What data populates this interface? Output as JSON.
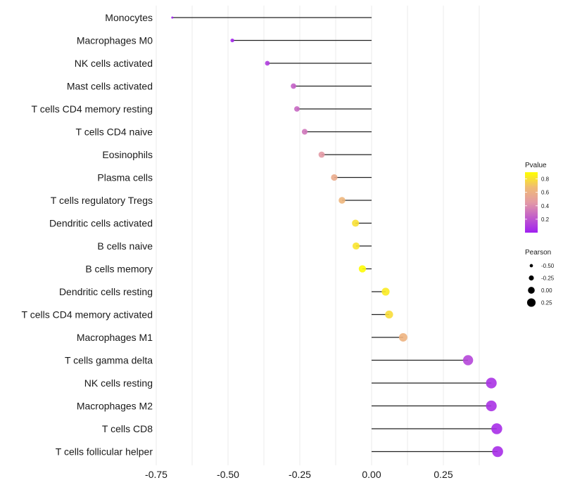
{
  "chart_data": {
    "type": "lollipop",
    "title": "",
    "xlabel": "",
    "ylabel": "",
    "xlim": [
      -0.76,
      0.48
    ],
    "x_ticks": [
      -0.75,
      -0.5,
      -0.25,
      0.0,
      0.25
    ],
    "x_tick_labels": [
      "-0.75",
      "-0.50",
      "-0.25",
      "0.00",
      "0.25"
    ],
    "grid": true,
    "categories": [
      "Monocytes",
      "Macrophages M0",
      "NK cells activated",
      "Mast cells activated",
      "T cells CD4 memory resting",
      "T cells CD4 naive",
      "Eosinophils",
      "Plasma cells",
      "T cells regulatory  Tregs",
      "Dendritic cells activated",
      "B cells naive",
      "B cells memory",
      "Dendritic cells resting",
      "T cells CD4 memory activated",
      "Macrophages M1",
      "T cells gamma delta",
      "NK cells resting",
      "Macrophages M2",
      "T cells CD8",
      "T cells follicular helper"
    ],
    "pearson": [
      -0.694,
      -0.485,
      -0.363,
      -0.272,
      -0.26,
      -0.233,
      -0.174,
      -0.13,
      -0.103,
      -0.056,
      -0.054,
      -0.032,
      0.049,
      0.061,
      0.11,
      0.336,
      0.417,
      0.417,
      0.436,
      0.439
    ],
    "pvalue": [
      0.001,
      0.03,
      0.11,
      0.24,
      0.27,
      0.32,
      0.45,
      0.58,
      0.66,
      0.81,
      0.82,
      0.89,
      0.84,
      0.8,
      0.64,
      0.14,
      0.07,
      0.07,
      0.05,
      0.05
    ],
    "legend": {
      "placement": "right",
      "color": {
        "title": "Pvalue",
        "range": [
          0,
          0.9
        ],
        "ticks": [
          0.2,
          0.4,
          0.6,
          0.8
        ],
        "tick_labels": [
          "0.2",
          "0.4",
          "0.6",
          "0.8"
        ],
        "low_color": "#a020f0",
        "high_color": "#ffff00"
      },
      "size": {
        "title": "Pearson",
        "values": [
          -0.5,
          -0.25,
          0.0,
          0.25
        ],
        "labels": [
          "-0.50",
          "-0.25",
          "0.00",
          "0.25"
        ]
      }
    }
  }
}
